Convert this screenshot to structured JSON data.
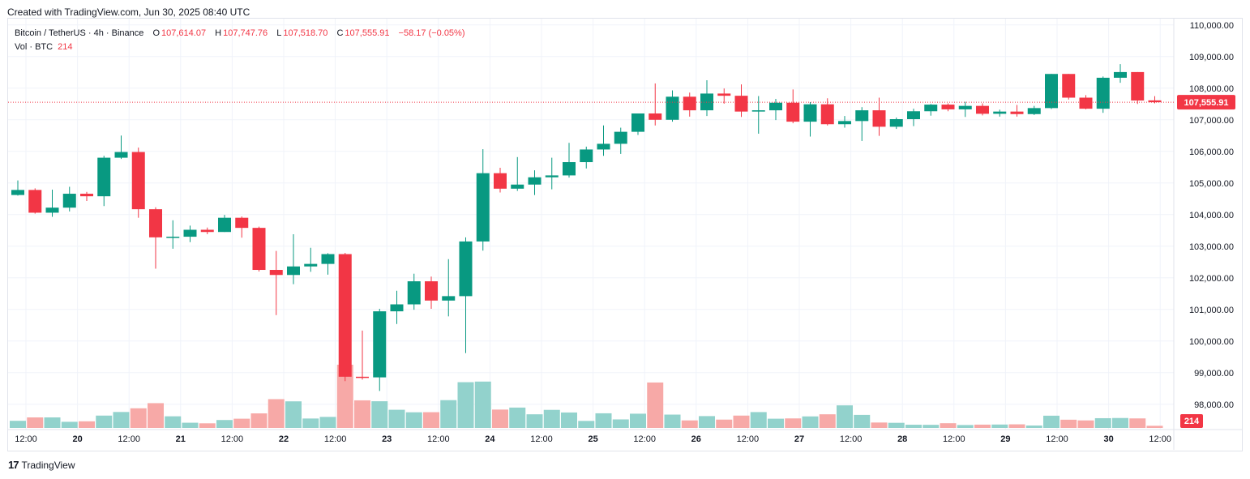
{
  "header": {
    "created_text": "Created with TradingView.com, Jun 30, 2025 08:40 UTC"
  },
  "legend": {
    "symbol": "Bitcoin / TetherUS · 4h · Binance",
    "open_label": "O",
    "open": "107,614.07",
    "high_label": "H",
    "high": "107,747.76",
    "low_label": "L",
    "low": "107,518.70",
    "close_label": "C",
    "close": "107,555.91",
    "change": "−58.17 (−0.05%)",
    "vol_label": "Vol · BTC",
    "vol_value": "214"
  },
  "footer": {
    "brand": "TradingView",
    "logo_text": "17"
  },
  "colors": {
    "up": "#089981",
    "down": "#f23645",
    "vol_up": "#92d2cc",
    "vol_down": "#f7a9a7",
    "grid": "#f0f3fa"
  },
  "chart_data": {
    "type": "candlestick",
    "y_ticks": [
      "110,000.00",
      "109,000.00",
      "108,000.00",
      "107,000.00",
      "106,000.00",
      "105,000.00",
      "104,000.00",
      "103,000.00",
      "102,000.00",
      "101,000.00",
      "100,000.00",
      "99,000.00",
      "98,000.00"
    ],
    "ylim": [
      97250,
      110200
    ],
    "x_ticks": [
      "12:00",
      "20",
      "12:00",
      "21",
      "12:00",
      "22",
      "12:00",
      "23",
      "12:00",
      "24",
      "12:00",
      "25",
      "12:00",
      "26",
      "12:00",
      "27",
      "12:00",
      "28",
      "12:00",
      "29",
      "12:00",
      "30",
      "12:00"
    ],
    "bold_x_ticks": [
      "20",
      "21",
      "22",
      "23",
      "24",
      "25",
      "26",
      "27",
      "28",
      "29",
      "30"
    ],
    "last_price": "107,555.91",
    "last_volume": "214",
    "candles": [
      {
        "o": 104620,
        "h": 105080,
        "l": 104600,
        "c": 104780
      },
      {
        "o": 104780,
        "h": 104830,
        "l": 104030,
        "c": 104060
      },
      {
        "o": 104060,
        "h": 104790,
        "l": 103930,
        "c": 104220
      },
      {
        "o": 104220,
        "h": 104880,
        "l": 104100,
        "c": 104660
      },
      {
        "o": 104660,
        "h": 104720,
        "l": 104430,
        "c": 104580
      },
      {
        "o": 104580,
        "h": 105860,
        "l": 104270,
        "c": 105800
      },
      {
        "o": 105800,
        "h": 106500,
        "l": 105760,
        "c": 105980
      },
      {
        "o": 105980,
        "h": 106120,
        "l": 103900,
        "c": 104170
      },
      {
        "o": 104170,
        "h": 104230,
        "l": 102290,
        "c": 103280
      },
      {
        "o": 103280,
        "h": 103820,
        "l": 102920,
        "c": 103300
      },
      {
        "o": 103300,
        "h": 103650,
        "l": 103130,
        "c": 103520
      },
      {
        "o": 103520,
        "h": 103590,
        "l": 103380,
        "c": 103450
      },
      {
        "o": 103450,
        "h": 103990,
        "l": 103450,
        "c": 103900
      },
      {
        "o": 103900,
        "h": 103940,
        "l": 103270,
        "c": 103580
      },
      {
        "o": 103580,
        "h": 103620,
        "l": 102200,
        "c": 102250
      },
      {
        "o": 102250,
        "h": 102850,
        "l": 100820,
        "c": 102090
      },
      {
        "o": 102090,
        "h": 103380,
        "l": 101800,
        "c": 102360
      },
      {
        "o": 102360,
        "h": 102950,
        "l": 102190,
        "c": 102440
      },
      {
        "o": 102440,
        "h": 102780,
        "l": 102100,
        "c": 102750
      },
      {
        "o": 102750,
        "h": 102790,
        "l": 98730,
        "c": 98870
      },
      {
        "o": 98870,
        "h": 100330,
        "l": 98780,
        "c": 98850
      },
      {
        "o": 98850,
        "h": 101020,
        "l": 98420,
        "c": 100940
      },
      {
        "o": 100940,
        "h": 101590,
        "l": 100540,
        "c": 101160
      },
      {
        "o": 101160,
        "h": 102130,
        "l": 100990,
        "c": 101890
      },
      {
        "o": 101890,
        "h": 102040,
        "l": 101020,
        "c": 101280
      },
      {
        "o": 101280,
        "h": 102590,
        "l": 100780,
        "c": 101420
      },
      {
        "o": 101420,
        "h": 103280,
        "l": 99620,
        "c": 103150
      },
      {
        "o": 103150,
        "h": 106070,
        "l": 102860,
        "c": 105310
      },
      {
        "o": 105310,
        "h": 105480,
        "l": 104700,
        "c": 104820
      },
      {
        "o": 104820,
        "h": 105820,
        "l": 104750,
        "c": 104950
      },
      {
        "o": 104950,
        "h": 105400,
        "l": 104620,
        "c": 105180
      },
      {
        "o": 105180,
        "h": 105800,
        "l": 104800,
        "c": 105240
      },
      {
        "o": 105240,
        "h": 106270,
        "l": 105170,
        "c": 105660
      },
      {
        "o": 105660,
        "h": 106150,
        "l": 105460,
        "c": 106060
      },
      {
        "o": 106060,
        "h": 106820,
        "l": 105860,
        "c": 106240
      },
      {
        "o": 106240,
        "h": 106750,
        "l": 105920,
        "c": 106620
      },
      {
        "o": 106620,
        "h": 107200,
        "l": 106520,
        "c": 107200
      },
      {
        "o": 107200,
        "h": 108150,
        "l": 106820,
        "c": 107000
      },
      {
        "o": 107000,
        "h": 107930,
        "l": 106940,
        "c": 107730
      },
      {
        "o": 107730,
        "h": 107860,
        "l": 107100,
        "c": 107300
      },
      {
        "o": 107300,
        "h": 108250,
        "l": 107120,
        "c": 107830
      },
      {
        "o": 107830,
        "h": 107990,
        "l": 107510,
        "c": 107760
      },
      {
        "o": 107760,
        "h": 108120,
        "l": 107090,
        "c": 107260
      },
      {
        "o": 107260,
        "h": 107750,
        "l": 106560,
        "c": 107300
      },
      {
        "o": 107300,
        "h": 107660,
        "l": 106990,
        "c": 107540
      },
      {
        "o": 107540,
        "h": 107960,
        "l": 106890,
        "c": 106940
      },
      {
        "o": 106940,
        "h": 107560,
        "l": 106470,
        "c": 107490
      },
      {
        "o": 107490,
        "h": 107680,
        "l": 106820,
        "c": 106860
      },
      {
        "o": 106860,
        "h": 107120,
        "l": 106750,
        "c": 106960
      },
      {
        "o": 106960,
        "h": 107400,
        "l": 106330,
        "c": 107300
      },
      {
        "o": 107300,
        "h": 107700,
        "l": 106490,
        "c": 106780
      },
      {
        "o": 106780,
        "h": 107070,
        "l": 106710,
        "c": 107020
      },
      {
        "o": 107020,
        "h": 107350,
        "l": 106800,
        "c": 107270
      },
      {
        "o": 107270,
        "h": 107500,
        "l": 107130,
        "c": 107480
      },
      {
        "o": 107480,
        "h": 107520,
        "l": 107270,
        "c": 107330
      },
      {
        "o": 107330,
        "h": 107570,
        "l": 107090,
        "c": 107440
      },
      {
        "o": 107440,
        "h": 107520,
        "l": 107140,
        "c": 107190
      },
      {
        "o": 107190,
        "h": 107320,
        "l": 107100,
        "c": 107260
      },
      {
        "o": 107260,
        "h": 107470,
        "l": 107100,
        "c": 107180
      },
      {
        "o": 107180,
        "h": 107440,
        "l": 107150,
        "c": 107370
      },
      {
        "o": 107370,
        "h": 108450,
        "l": 107340,
        "c": 108450
      },
      {
        "o": 108450,
        "h": 108450,
        "l": 107640,
        "c": 107700
      },
      {
        "o": 107700,
        "h": 107780,
        "l": 107330,
        "c": 107350
      },
      {
        "o": 107350,
        "h": 108370,
        "l": 107220,
        "c": 108330
      },
      {
        "o": 108330,
        "h": 108760,
        "l": 108170,
        "c": 108510
      },
      {
        "o": 108510,
        "h": 108510,
        "l": 107500,
        "c": 107610
      },
      {
        "o": 107614.07,
        "h": 107747.76,
        "l": 107518.7,
        "c": 107555.91
      }
    ],
    "volumes": [
      710,
      1050,
      1050,
      610,
      660,
      1230,
      1590,
      1960,
      2470,
      1160,
      520,
      460,
      790,
      920,
      1450,
      2870,
      2650,
      940,
      1100,
      6300,
      2750,
      2660,
      1810,
      1560,
      1570,
      2770,
      4560,
      4620,
      1830,
      2030,
      1360,
      1800,
      1540,
      700,
      1460,
      850,
      1420,
      4530,
      1330,
      750,
      1180,
      830,
      1230,
      1580,
      920,
      950,
      1150,
      1360,
      2250,
      1300,
      540,
      510,
      320,
      310,
      470,
      290,
      330,
      340,
      360,
      240,
      1220,
      820,
      750,
      970,
      990,
      950,
      214
    ]
  }
}
